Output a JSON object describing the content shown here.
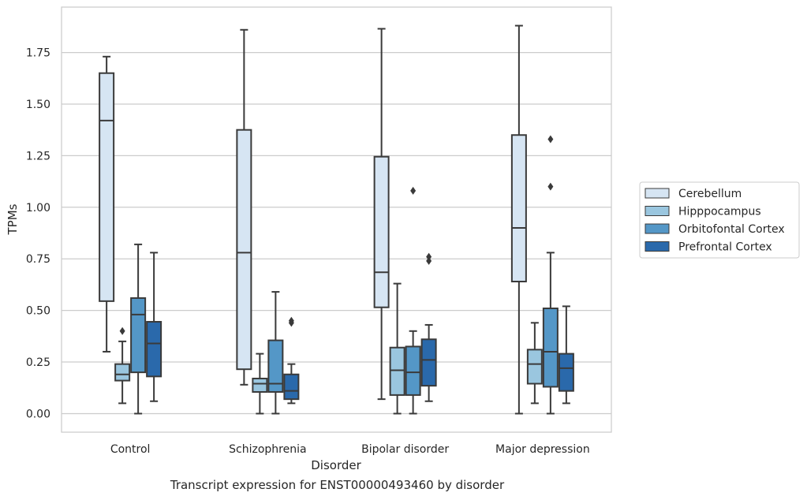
{
  "caption": "Transcript expression for ENST00000493460 by disorder",
  "chart_data": {
    "type": "boxplot",
    "xlabel": "Disorder",
    "ylabel": "TPMs",
    "ylim": [
      -0.09,
      1.97
    ],
    "yticks": [
      0.0,
      0.25,
      0.5,
      0.75,
      1.0,
      1.25,
      1.5,
      1.75
    ],
    "ytick_labels": [
      "0.00",
      "0.25",
      "0.50",
      "0.75",
      "1.00",
      "1.25",
      "1.50",
      "1.75"
    ],
    "grid": true,
    "legend_position": "right",
    "categories": [
      "Control",
      "Schizophrenia",
      "Bipolar disorder",
      "Major depression"
    ],
    "series": [
      {
        "name": "Cerebellum",
        "color": "#d6e5f3",
        "boxes": [
          {
            "whisker_low": 0.3,
            "q1": 0.545,
            "median": 1.42,
            "q3": 1.65,
            "whisker_high": 1.73,
            "outliers": []
          },
          {
            "whisker_low": 0.14,
            "q1": 0.215,
            "median": 0.78,
            "q3": 1.375,
            "whisker_high": 1.86,
            "outliers": []
          },
          {
            "whisker_low": 0.07,
            "q1": 0.515,
            "median": 0.685,
            "q3": 1.245,
            "whisker_high": 1.865,
            "outliers": []
          },
          {
            "whisker_low": 0.0,
            "q1": 0.64,
            "median": 0.9,
            "q3": 1.35,
            "whisker_high": 1.88,
            "outliers": []
          }
        ]
      },
      {
        "name": "Hipppocampus",
        "color": "#9ac6df",
        "boxes": [
          {
            "whisker_low": 0.05,
            "q1": 0.16,
            "median": 0.19,
            "q3": 0.24,
            "whisker_high": 0.35,
            "outliers": [
              0.4
            ]
          },
          {
            "whisker_low": 0.0,
            "q1": 0.105,
            "median": 0.145,
            "q3": 0.17,
            "whisker_high": 0.29,
            "outliers": []
          },
          {
            "whisker_low": 0.0,
            "q1": 0.09,
            "median": 0.21,
            "q3": 0.32,
            "whisker_high": 0.63,
            "outliers": []
          },
          {
            "whisker_low": 0.05,
            "q1": 0.145,
            "median": 0.24,
            "q3": 0.31,
            "whisker_high": 0.44,
            "outliers": []
          }
        ]
      },
      {
        "name": "Orbitofontal Cortex",
        "color": "#5497c7",
        "boxes": [
          {
            "whisker_low": 0.0,
            "q1": 0.2,
            "median": 0.48,
            "q3": 0.56,
            "whisker_high": 0.82,
            "outliers": []
          },
          {
            "whisker_low": 0.0,
            "q1": 0.105,
            "median": 0.145,
            "q3": 0.355,
            "whisker_high": 0.59,
            "outliers": []
          },
          {
            "whisker_low": 0.0,
            "q1": 0.09,
            "median": 0.2,
            "q3": 0.325,
            "whisker_high": 0.4,
            "outliers": [
              1.08
            ]
          },
          {
            "whisker_low": 0.0,
            "q1": 0.13,
            "median": 0.3,
            "q3": 0.51,
            "whisker_high": 0.78,
            "outliers": [
              1.1,
              1.33
            ]
          }
        ]
      },
      {
        "name": "Prefrontal Cortex",
        "color": "#2a69ab",
        "boxes": [
          {
            "whisker_low": 0.06,
            "q1": 0.18,
            "median": 0.34,
            "q3": 0.445,
            "whisker_high": 0.78,
            "outliers": []
          },
          {
            "whisker_low": 0.05,
            "q1": 0.07,
            "median": 0.11,
            "q3": 0.19,
            "whisker_high": 0.24,
            "outliers": [
              0.44,
              0.45
            ]
          },
          {
            "whisker_low": 0.06,
            "q1": 0.135,
            "median": 0.26,
            "q3": 0.36,
            "whisker_high": 0.43,
            "outliers": [
              0.74,
              0.76
            ]
          },
          {
            "whisker_low": 0.05,
            "q1": 0.11,
            "median": 0.22,
            "q3": 0.29,
            "whisker_high": 0.52,
            "outliers": []
          }
        ]
      }
    ]
  }
}
